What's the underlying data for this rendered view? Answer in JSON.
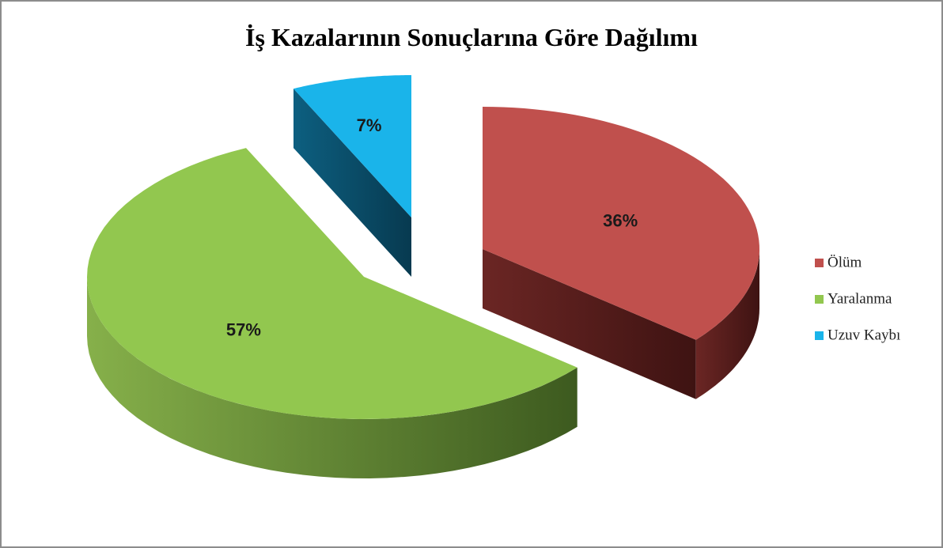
{
  "chart_data": {
    "type": "pie",
    "title": "İş Kazalarının Sonuçlarına Göre Dağılımı",
    "categories": [
      "Ölüm",
      "Yaralanma",
      "Uzuv Kaybı"
    ],
    "values": [
      36,
      57,
      7
    ],
    "value_labels": [
      "36%",
      "57%",
      "7%"
    ],
    "colors": [
      "#c0504d",
      "#92c74f",
      "#1ab4ea"
    ],
    "legend": "right"
  }
}
